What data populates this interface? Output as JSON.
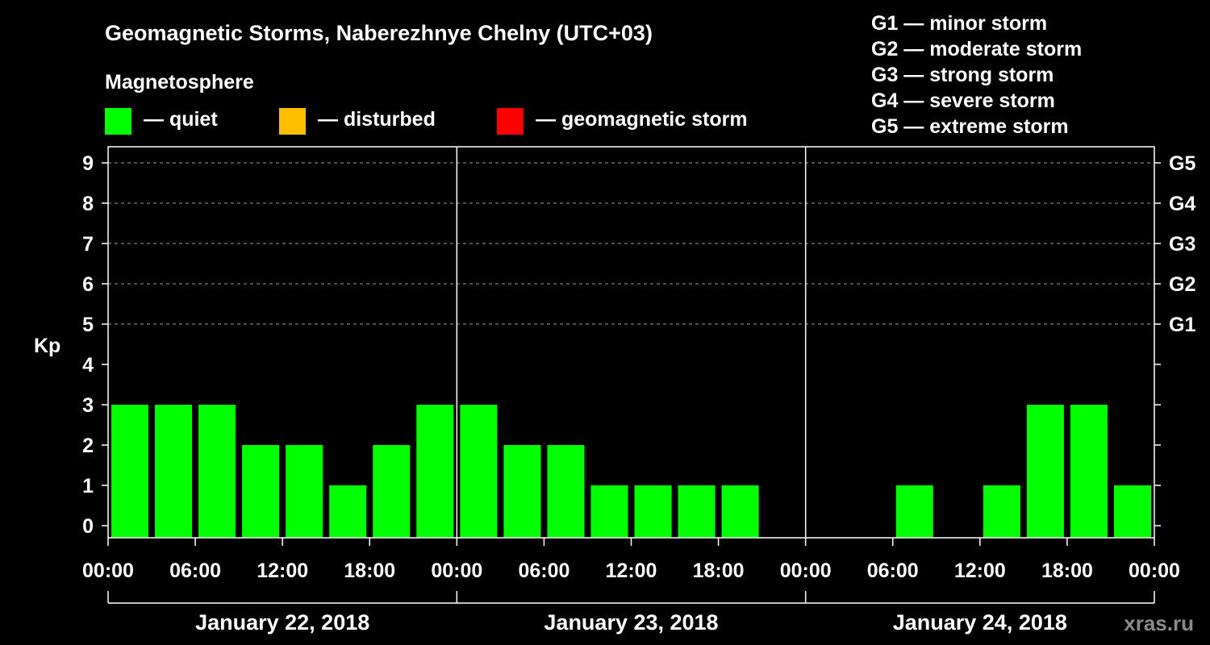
{
  "chart_data": {
    "type": "bar",
    "title": "Geomagnetic Storms, Naberezhnye Chelny (UTC+03)",
    "ylabel": "Kp",
    "ylim": [
      0,
      9
    ],
    "yticks": [
      "0",
      "1",
      "2",
      "3",
      "4",
      "5",
      "6",
      "7",
      "8",
      "9"
    ],
    "right_axis": [
      {
        "kp": 5,
        "label": "G1"
      },
      {
        "kp": 6,
        "label": "G2"
      },
      {
        "kp": 7,
        "label": "G3"
      },
      {
        "kp": 8,
        "label": "G4"
      },
      {
        "kp": 9,
        "label": "G5"
      }
    ],
    "xtick_labels": [
      "00:00",
      "06:00",
      "12:00",
      "18:00",
      "00:00",
      "06:00",
      "12:00",
      "18:00",
      "00:00",
      "06:00",
      "12:00",
      "18:00",
      "00:00"
    ],
    "days": [
      "January 22, 2018",
      "January 23, 2018",
      "January 24, 2018"
    ],
    "interval_hours": 3,
    "values": [
      3,
      3,
      3,
      2,
      2,
      1,
      2,
      3,
      3,
      2,
      2,
      1,
      1,
      1,
      1,
      0,
      0,
      0,
      1,
      0,
      1,
      3,
      3,
      1
    ],
    "colors": {
      "quiet": "#00ff00",
      "disturbed": "#ffbf00",
      "storm": "#ff0000"
    }
  },
  "legend": {
    "heading": "Magnetosphere",
    "quiet": "— quiet",
    "disturbed": "— disturbed",
    "storm": "— geomagnetic storm"
  },
  "storm_scale": [
    "G1 — minor storm",
    "G2 — moderate storm",
    "G3 — strong storm",
    "G4 — severe storm",
    "G5 — extreme storm"
  ],
  "watermark": "xras.ru"
}
